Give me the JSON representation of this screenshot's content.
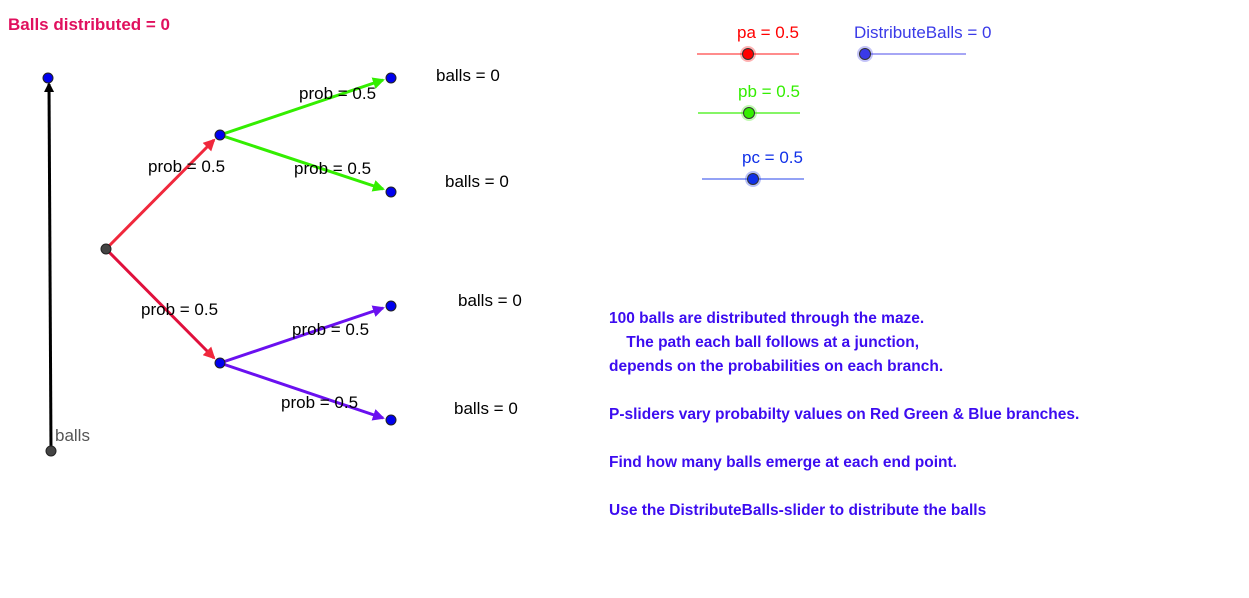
{
  "header": {
    "balls_distributed_label": "Balls distributed = 0"
  },
  "colors": {
    "title": "#e0105e",
    "red_branch": "#f0283c",
    "green_branch": "#33ee00",
    "purple_branch": "#6a10f0",
    "point": "#0000ee",
    "text_blue": "#3c0cf0",
    "slider_pa": "#ff0000",
    "slider_pb": "#33ee00",
    "slider_pc": "#1030e8",
    "slider_db": "#3a3ae8"
  },
  "tree": {
    "balls_axis_label": "balls",
    "branch_labels": [
      "prob = 0.5",
      "prob = 0.5",
      "prob = 0.5",
      "prob = 0.5",
      "prob = 0.5",
      "prob = 0.5"
    ],
    "end_counts": [
      "balls = 0",
      "balls = 0",
      "balls = 0",
      "balls = 0"
    ]
  },
  "sliders": {
    "pa": {
      "label": "pa = 0.5",
      "value": 0.5
    },
    "pb": {
      "label": "pb = 0.5",
      "value": 0.5
    },
    "pc": {
      "label": "pc = 0.5",
      "value": 0.5
    },
    "distribute": {
      "label": "DistributeBalls = 0",
      "value": 0
    }
  },
  "info": {
    "lines": [
      "100 balls are distributed through the maze.",
      "    The path each ball follows at a junction,",
      "depends on the probabilities on each branch.",
      "",
      "P-sliders vary probabilty values on Red Green & Blue branches.",
      "",
      "Find how many balls emerge at each end point.",
      "",
      "Use the DistributeBalls-slider to distribute the balls"
    ]
  }
}
